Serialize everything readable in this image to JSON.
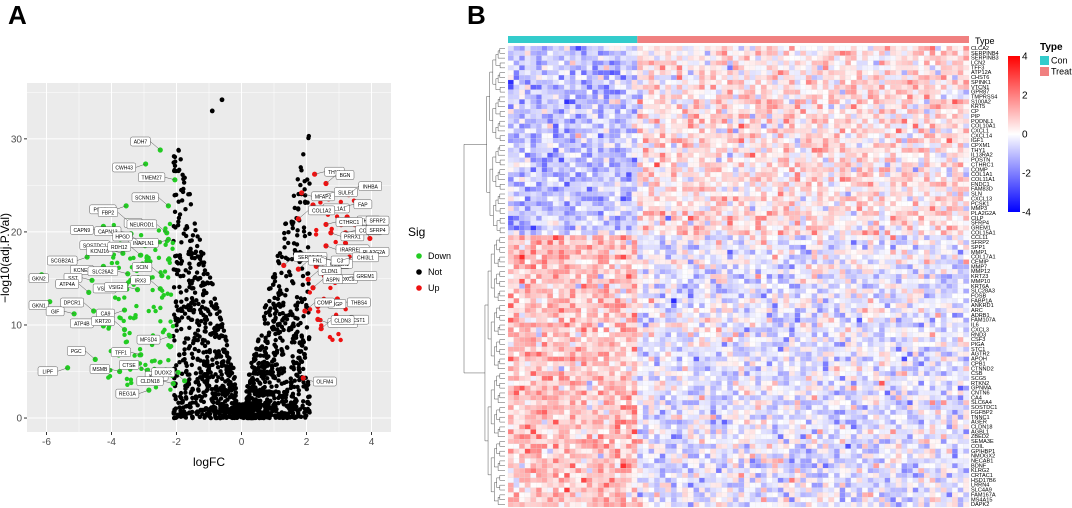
{
  "panel_a": {
    "letter": "A"
  },
  "panel_b": {
    "letter": "B"
  },
  "chart_data": [
    {
      "type": "scatter",
      "title": "",
      "xlabel": "logFC",
      "ylabel": "−log10(adj.P.Val)",
      "xlim": [
        -6.6,
        4.6
      ],
      "ylim": [
        -1.5,
        36
      ],
      "x_ticks": [
        -6,
        -4,
        -2,
        0,
        2,
        4
      ],
      "y_ticks": [
        0,
        10,
        20,
        30
      ],
      "grid": true,
      "legend": {
        "title": "Sig",
        "position": "right",
        "items": [
          {
            "label": "Down",
            "color": "#22cc22"
          },
          {
            "label": "Not",
            "color": "#000000"
          },
          {
            "label": "Up",
            "color": "#ee1111"
          }
        ]
      },
      "labeled_genes": [
        {
          "gene": "ADH7",
          "x": -2.5,
          "y": 28.8,
          "sig": "Down"
        },
        {
          "gene": "CWH43",
          "x": -2.95,
          "y": 27.3,
          "sig": "Down"
        },
        {
          "gene": "TMEM27",
          "x": -2.05,
          "y": 25.6,
          "sig": "Down"
        },
        {
          "gene": "SCNN1B",
          "x": -2.25,
          "y": 22.8,
          "sig": "Down"
        },
        {
          "gene": "PSAPL1",
          "x": -3.55,
          "y": 22.8,
          "sig": "Down"
        },
        {
          "gene": "MAL",
          "x": -2.75,
          "y": 20.7,
          "sig": "Down"
        },
        {
          "gene": "FBP2",
          "x": -3.5,
          "y": 21.2,
          "sig": "Down"
        },
        {
          "gene": "CAPN9",
          "x": -4.25,
          "y": 20.6,
          "sig": "Down"
        },
        {
          "gene": "CAPN13",
          "x": -3.4,
          "y": 19.8,
          "sig": "Down"
        },
        {
          "gene": "NEUROD1",
          "x": -2.3,
          "y": 19.9,
          "sig": "Down"
        },
        {
          "gene": "INAPLN1",
          "x": -2.25,
          "y": 19.2,
          "sig": "Down"
        },
        {
          "gene": "SOSTDC1",
          "x": -3.75,
          "y": 18.3,
          "sig": "Down"
        },
        {
          "gene": "HPGD",
          "x": -3.05,
          "y": 18.6,
          "sig": "Down"
        },
        {
          "gene": "SCGB2A1",
          "x": -4.75,
          "y": 17.3,
          "sig": "Down"
        },
        {
          "gene": "KCNJ16",
          "x": -3.65,
          "y": 17.7,
          "sig": "Down"
        },
        {
          "gene": "RDH12",
          "x": -3.1,
          "y": 17.5,
          "sig": "Down"
        },
        {
          "gene": "KCNE2",
          "x": -4.25,
          "y": 16.3,
          "sig": "Down"
        },
        {
          "gene": "SLC26A2",
          "x": -3.5,
          "y": 15.5,
          "sig": "Down"
        },
        {
          "gene": "SCIN",
          "x": -2.45,
          "y": 15.3,
          "sig": "Down"
        },
        {
          "gene": "GKN2",
          "x": -6.15,
          "y": 15.4,
          "sig": "Down"
        },
        {
          "gene": "SST",
          "x": -4.6,
          "y": 14.8,
          "sig": "Down"
        },
        {
          "gene": "ATP4A",
          "x": -4.7,
          "y": 13.5,
          "sig": "Down"
        },
        {
          "gene": "VSIG1",
          "x": -3.55,
          "y": 14.3,
          "sig": "Down"
        },
        {
          "gene": "VSIG2",
          "x": -3.2,
          "y": 13.8,
          "sig": "Down"
        },
        {
          "gene": "IRX3",
          "x": -2.5,
          "y": 13.9,
          "sig": "Down"
        },
        {
          "gene": "GKN1",
          "x": -5.9,
          "y": 12.5,
          "sig": "Down"
        },
        {
          "gene": "GIF",
          "x": -5.15,
          "y": 11.2,
          "sig": "Down"
        },
        {
          "gene": "DPCR1",
          "x": -4.55,
          "y": 11.5,
          "sig": "Down"
        },
        {
          "gene": "CA9",
          "x": -3.6,
          "y": 11.6,
          "sig": "Down"
        },
        {
          "gene": "ATP4B",
          "x": -4.25,
          "y": 9.9,
          "sig": "Down"
        },
        {
          "gene": "KRT20",
          "x": -3.6,
          "y": 9.5,
          "sig": "Down"
        },
        {
          "gene": "MFSD4",
          "x": -2.2,
          "y": 8.8,
          "sig": "Down"
        },
        {
          "gene": "TFF1",
          "x": -3.1,
          "y": 6.8,
          "sig": "Down"
        },
        {
          "gene": "PGC",
          "x": -4.5,
          "y": 6.3,
          "sig": "Down"
        },
        {
          "gene": "LIPF",
          "x": -5.35,
          "y": 5.4,
          "sig": "Down"
        },
        {
          "gene": "MSMB",
          "x": -3.75,
          "y": 5.0,
          "sig": "Down"
        },
        {
          "gene": "CTSE",
          "x": -2.85,
          "y": 4.8,
          "sig": "Down"
        },
        {
          "gene": "KLK11",
          "x": -1.95,
          "y": 4.9,
          "sig": "Down"
        },
        {
          "gene": "CLDN18",
          "x": -2.1,
          "y": 3.7,
          "sig": "Down"
        },
        {
          "gene": "DUOX2",
          "x": -1.75,
          "y": 4.0,
          "sig": "Down"
        },
        {
          "gene": "REG1A",
          "x": -2.85,
          "y": 3.0,
          "sig": "Down"
        },
        {
          "gene": "THY1",
          "x": 2.25,
          "y": 26.2,
          "sig": "Up"
        },
        {
          "gene": "BGN",
          "x": 2.6,
          "y": 25.2,
          "sig": "Up"
        },
        {
          "gene": "MFAP2",
          "x": 1.85,
          "y": 24.2,
          "sig": "Up"
        },
        {
          "gene": "SULF1",
          "x": 2.55,
          "y": 24.0,
          "sig": "Up"
        },
        {
          "gene": "INHBA",
          "x": 3.3,
          "y": 24.0,
          "sig": "Up"
        },
        {
          "gene": "COL1A1",
          "x": 2.2,
          "y": 22.9,
          "sig": "Up"
        },
        {
          "gene": "FAP",
          "x": 3.15,
          "y": 22.7,
          "sig": "Up"
        },
        {
          "gene": "COL1A2",
          "x": 1.75,
          "y": 21.4,
          "sig": "Up"
        },
        {
          "gene": "THBS2",
          "x": 3.25,
          "y": 21.6,
          "sig": "Up"
        },
        {
          "gene": "CTHRC1",
          "x": 2.6,
          "y": 20.8,
          "sig": "Up"
        },
        {
          "gene": "SFRP2",
          "x": 3.85,
          "y": 20.3,
          "sig": "Up"
        },
        {
          "gene": "PRRX1",
          "x": 2.75,
          "y": 19.9,
          "sig": "Up"
        },
        {
          "gene": "COL6A3",
          "x": 3.2,
          "y": 19.9,
          "sig": "Up"
        },
        {
          "gene": "SFRP4",
          "x": 3.95,
          "y": 19.3,
          "sig": "Up"
        },
        {
          "gene": "IRARRES1",
          "x": 2.6,
          "y": 18.5,
          "sig": "Up"
        },
        {
          "gene": "PLA2G2A",
          "x": 3.75,
          "y": 17.6,
          "sig": "Up"
        },
        {
          "gene": "SERPINE1",
          "x": 1.3,
          "y": 16.4,
          "sig": "Up"
        },
        {
          "gene": "IGFBP4",
          "x": 2.2,
          "y": 16.9,
          "sig": "Up"
        },
        {
          "gene": "COL8A1",
          "x": 2.3,
          "y": 16.3,
          "sig": "Up"
        },
        {
          "gene": "FN1",
          "x": 1.75,
          "y": 16.0,
          "sig": "Up"
        },
        {
          "gene": "C3",
          "x": 2.45,
          "y": 17.3,
          "sig": "Up"
        },
        {
          "gene": "CHI3L1",
          "x": 3.1,
          "y": 17.0,
          "sig": "Up"
        },
        {
          "gene": "CLDN1",
          "x": 2.05,
          "y": 14.9,
          "sig": "Up"
        },
        {
          "gene": "HOXC9",
          "x": 2.55,
          "y": 15.3,
          "sig": "Up"
        },
        {
          "gene": "GREM1",
          "x": 3.15,
          "y": 15.0,
          "sig": "Up"
        },
        {
          "gene": "ASPN",
          "x": 2.2,
          "y": 14.0,
          "sig": "Up"
        },
        {
          "gene": "THBS4",
          "x": 2.95,
          "y": 12.8,
          "sig": "Up"
        },
        {
          "gene": "MGP",
          "x": 2.35,
          "y": 12.0,
          "sig": "Up"
        },
        {
          "gene": "COMP",
          "x": 1.95,
          "y": 11.5,
          "sig": "Up"
        },
        {
          "gene": "COL10A1",
          "x": 2.35,
          "y": 10.6,
          "sig": "Up"
        },
        {
          "gene": "CST1",
          "x": 3.0,
          "y": 10.3,
          "sig": "Up"
        },
        {
          "gene": "CLDN3",
          "x": 2.45,
          "y": 9.6,
          "sig": "Up"
        },
        {
          "gene": "OLFM4",
          "x": 1.9,
          "y": 4.3,
          "sig": "Up"
        }
      ]
    },
    {
      "type": "heatmap",
      "title": "",
      "column_annotation": {
        "name": "Type",
        "groups": [
          {
            "label": "Con",
            "count": 23,
            "color": "#33cccc"
          },
          {
            "label": "Treat",
            "count": 59,
            "color": "#f08080"
          }
        ]
      },
      "color_scale": {
        "min": -4,
        "max": 4,
        "ticks": [
          4,
          2,
          0,
          -2,
          -4
        ],
        "low": "#0000ff",
        "mid": "#ffffff",
        "high": "#ff0000"
      },
      "upregulated_rows": 39,
      "rows": [
        "CLCA2",
        "SERPINB4",
        "SERPINB3",
        "LCN2",
        "TFF3",
        "ATP12A",
        "CHST6",
        "SPINK1",
        "VTCN1",
        "GPR87",
        "TMPRSS4",
        "S100A2",
        "KRT5",
        "CP",
        "PIP",
        "PODNL1",
        "COL10A1",
        "CXCL1",
        "CXCL14",
        "IGF1",
        "CPXM1",
        "THY1",
        "IL13RA2",
        "POSTN",
        "CTHRC1",
        "COMP",
        "COL1A1",
        "COL11A1",
        "FNDC1",
        "FAM83D",
        "SLN",
        "CXCL13",
        "PCSK1",
        "MMP3",
        "PLA2G2A",
        "CILP",
        "SFRP4",
        "GREM1",
        "COL15A1",
        "CCL11",
        "SFRP2",
        "SPP1",
        "MMP1",
        "COL17A1",
        "CEMIP",
        "MMP7",
        "MMP12",
        "KRT23",
        "MMP10",
        "KRT6A",
        "SLC28A3",
        "FOSB",
        "FABP1A",
        "ANKRD1",
        "ARC",
        "ADRB1",
        "FAM107A",
        "IL6",
        "CXCL3",
        "RND3",
        "CSF3",
        "PIGA",
        "STC1",
        "AGTR2",
        "APOH",
        "CPB1",
        "CTNND2",
        "CSB",
        "SCG5",
        "RTKN2",
        "GPNMA",
        "CNTN6",
        "CA4",
        "SLC6A4",
        "SOSTDC1",
        "FGFBP2",
        "TNNC1",
        "AGER",
        "CLDN18",
        "AGBL1",
        "ZBED2",
        "SEMA3E",
        "COIL",
        "GPIHBP1",
        "NMOGX2",
        "NECAB1",
        "BDNF",
        "KLRG2",
        "CRTAC1",
        "HSD17B6",
        "LRRN4",
        "SLC4A9",
        "FAM167A",
        "MS4A15",
        "DAPK2"
      ]
    }
  ]
}
